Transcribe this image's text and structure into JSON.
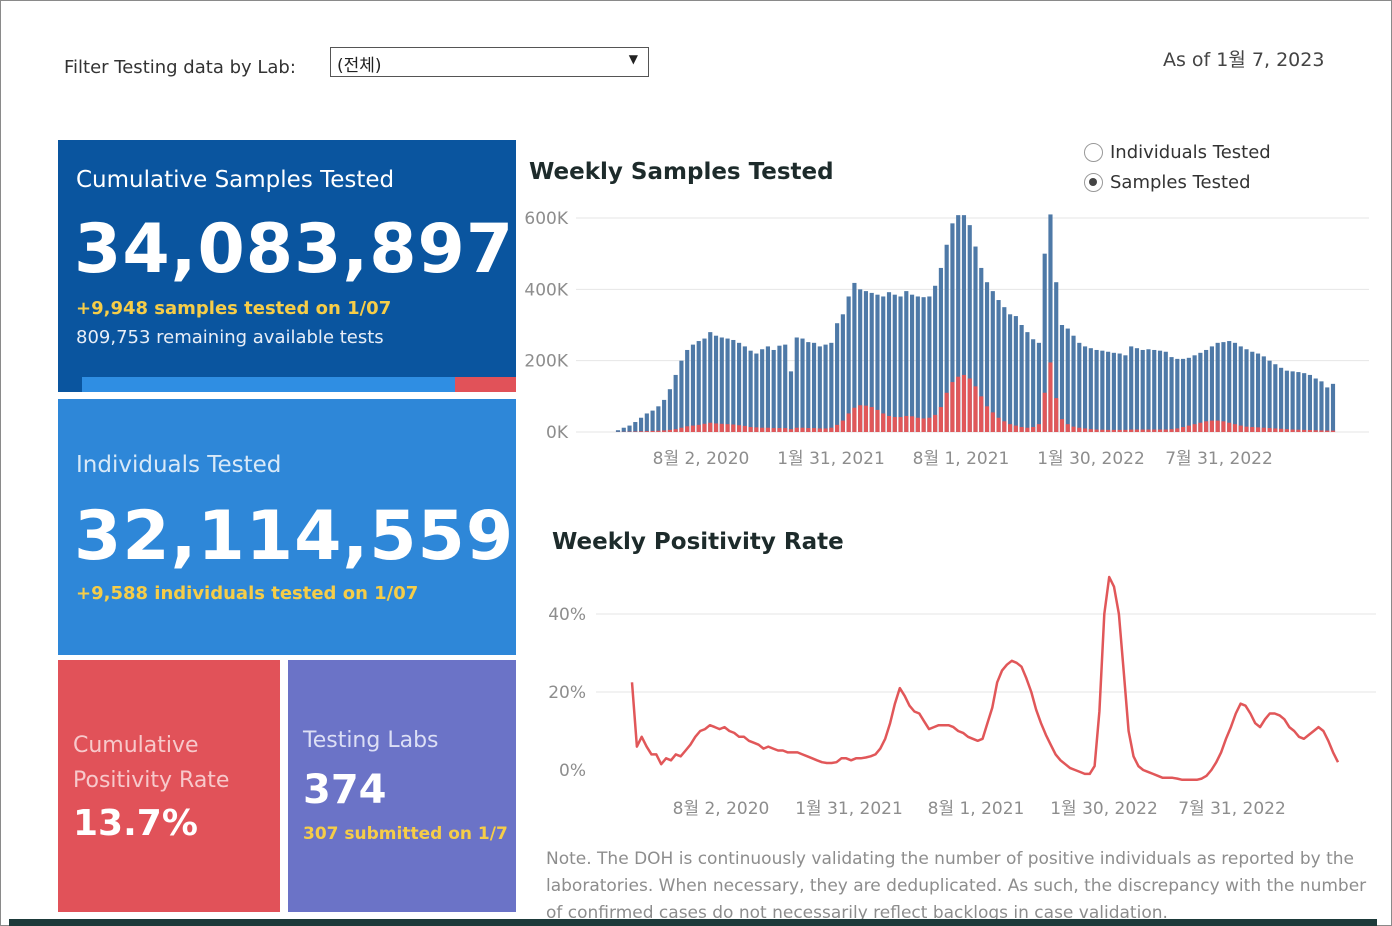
{
  "filter": {
    "label": "Filter Testing data by Lab:",
    "value": "(전체)"
  },
  "as_of": "As of 1월 7, 2023",
  "tiles": {
    "samples": {
      "title": "Cumulative Samples Tested",
      "value": "34,083,897",
      "delta": "+9,948 samples tested on 1/07",
      "remaining": "809,753 remaining available tests",
      "used_fraction": 0.86
    },
    "individuals": {
      "title": "Individuals Tested",
      "value": "32,114,559",
      "delta": "+9,588  individuals  tested on 1/07"
    },
    "positivity": {
      "title": "Cumulative Positivity Rate",
      "value": "13.7%"
    },
    "labs": {
      "title": "Testing Labs",
      "value": "374",
      "submitted": "307 submitted on 1/7"
    }
  },
  "toggle": {
    "options": [
      "Individuals Tested",
      "Samples Tested"
    ],
    "selected": "Samples Tested"
  },
  "chart_data": [
    {
      "type": "bar",
      "title": "Weekly Samples Tested",
      "ylim": [
        0,
        600000
      ],
      "y_ticks": [
        "600K",
        "400K",
        "200K",
        "0K"
      ],
      "x_tick_labels": [
        "8월 2, 2020",
        "1월 31, 2021",
        "8월 1, 2021",
        "1월 30, 2022",
        "7월 31, 2022"
      ],
      "colors": {
        "tested": "#4e79a7",
        "positive": "#e15759"
      },
      "series": [
        {
          "values": [
            5000,
            12000,
            18000,
            28000,
            40000,
            52000,
            60000,
            72000,
            90000,
            120000,
            160000,
            200000,
            230000,
            245000,
            255000,
            262000,
            280000,
            270000,
            265000,
            262000,
            258000,
            250000,
            240000,
            228000,
            220000,
            232000,
            240000,
            230000,
            242000,
            245000,
            170000,
            265000,
            262000,
            252000,
            250000,
            240000,
            245000,
            250000,
            305000,
            330000,
            380000,
            418000,
            400000,
            395000,
            390000,
            385000,
            380000,
            392000,
            385000,
            380000,
            395000,
            385000,
            380000,
            378000,
            380000,
            410000,
            460000,
            525000,
            585000,
            608000,
            608000,
            580000,
            520000,
            460000,
            420000,
            395000,
            370000,
            350000,
            330000,
            325000,
            300000,
            280000,
            260000,
            250000,
            500000,
            610000,
            420000,
            300000,
            290000,
            270000,
            250000,
            240000,
            235000,
            230000,
            228000,
            225000,
            222000,
            220000,
            215000,
            240000,
            235000,
            230000,
            232000,
            230000,
            228000,
            225000,
            210000,
            205000,
            205000,
            208000,
            215000,
            222000,
            230000,
            240000,
            250000,
            252000,
            255000,
            250000,
            240000,
            232000,
            225000,
            220000,
            212000,
            200000,
            190000,
            180000,
            172000,
            170000,
            168000,
            165000,
            160000,
            150000,
            142000,
            125000,
            135000
          ]
        },
        {
          "values": [
            300,
            600,
            900,
            1300,
            2000,
            2500,
            3000,
            3600,
            4500,
            6000,
            8000,
            12000,
            16000,
            18000,
            20000,
            23000,
            26000,
            24000,
            23000,
            22000,
            21000,
            19000,
            17000,
            14000,
            13000,
            12000,
            12000,
            11000,
            11000,
            11000,
            8000,
            12000,
            12000,
            11000,
            11000,
            10000,
            10000,
            12000,
            20000,
            32000,
            52000,
            68000,
            75000,
            74000,
            70000,
            62000,
            52000,
            45000,
            42000,
            42000,
            45000,
            44000,
            40000,
            38000,
            40000,
            48000,
            70000,
            110000,
            140000,
            155000,
            160000,
            150000,
            128000,
            100000,
            72000,
            55000,
            40000,
            30000,
            22000,
            18000,
            14000,
            12000,
            14000,
            22000,
            110000,
            195000,
            95000,
            36000,
            22000,
            15000,
            12000,
            10000,
            8000,
            7000,
            6500,
            6000,
            6000,
            6000,
            6000,
            7000,
            7000,
            7000,
            7000,
            7000,
            7000,
            7000,
            8000,
            10000,
            14000,
            18000,
            22000,
            26000,
            30000,
            32000,
            32000,
            30000,
            26000,
            22000,
            18000,
            15000,
            14000,
            13000,
            12000,
            11000,
            10000,
            9000,
            8000,
            7000,
            6500,
            6000,
            5500,
            5000,
            4500,
            4000,
            4000
          ]
        }
      ]
    },
    {
      "type": "line",
      "title": "Weekly Positivity Rate",
      "ylim": [
        0,
        0.45
      ],
      "y_ticks": [
        "40%",
        "20%",
        "0%"
      ],
      "x_tick_labels": [
        "8월 2, 2020",
        "1월 31, 2021",
        "8월 1, 2021",
        "1월 30, 2022",
        "7월 31, 2022"
      ],
      "color": "#e15759",
      "series": [
        {
          "values": [
            0.225,
            0.06,
            0.085,
            0.06,
            0.04,
            0.04,
            0.015,
            0.03,
            0.025,
            0.04,
            0.035,
            0.05,
            0.065,
            0.085,
            0.1,
            0.105,
            0.115,
            0.11,
            0.105,
            0.11,
            0.1,
            0.095,
            0.085,
            0.085,
            0.075,
            0.07,
            0.065,
            0.055,
            0.06,
            0.055,
            0.05,
            0.05,
            0.045,
            0.045,
            0.045,
            0.04,
            0.035,
            0.03,
            0.025,
            0.02,
            0.018,
            0.018,
            0.02,
            0.03,
            0.03,
            0.025,
            0.03,
            0.03,
            0.032,
            0.035,
            0.04,
            0.055,
            0.08,
            0.12,
            0.17,
            0.21,
            0.19,
            0.165,
            0.15,
            0.145,
            0.125,
            0.105,
            0.11,
            0.115,
            0.115,
            0.115,
            0.11,
            0.1,
            0.095,
            0.085,
            0.08,
            0.075,
            0.08,
            0.12,
            0.16,
            0.225,
            0.255,
            0.27,
            0.28,
            0.275,
            0.265,
            0.235,
            0.2,
            0.155,
            0.12,
            0.09,
            0.065,
            0.04,
            0.025,
            0.015,
            0.005,
            0.0,
            -0.005,
            -0.01,
            -0.01,
            0.01,
            0.15,
            0.4,
            0.495,
            0.47,
            0.4,
            0.25,
            0.1,
            0.035,
            0.01,
            0.0,
            -0.005,
            -0.01,
            -0.015,
            -0.02,
            -0.02,
            -0.02,
            -0.022,
            -0.025,
            -0.025,
            -0.025,
            -0.025,
            -0.022,
            -0.015,
            0.0,
            0.02,
            0.045,
            0.08,
            0.11,
            0.145,
            0.17,
            0.165,
            0.145,
            0.12,
            0.11,
            0.13,
            0.145,
            0.145,
            0.14,
            0.13,
            0.11,
            0.1,
            0.085,
            0.08,
            0.09,
            0.1,
            0.11,
            0.1,
            0.075,
            0.045,
            0.02
          ]
        }
      ]
    }
  ],
  "note": "Note. The DOH is continuously validating the number of positive individuals as reported by the laboratories. When necessary, they are deduplicated. As such, the discrepancy with the number of confirmed cases do not necessarily reflect backlogs in case validation."
}
